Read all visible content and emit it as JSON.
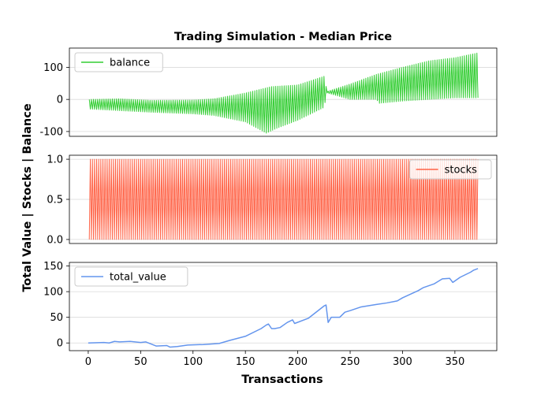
{
  "chart_data": {
    "type": "line",
    "title": "Trading Simulation - Median Price",
    "xlabel": "Transactions",
    "ylabel": "Total Value | Stocks | Balance",
    "xlim": [
      -18,
      390
    ],
    "xticks": [
      0,
      50,
      100,
      150,
      200,
      250,
      300,
      350
    ],
    "grid": "horizontal",
    "panels": [
      {
        "name": "balance",
        "legend": "balance",
        "legend_position": "upper-left",
        "color": "#32cd32",
        "style": "oscillating",
        "ylim": [
          -115,
          160
        ],
        "yticks": [
          -100,
          0,
          100
        ],
        "n": 372,
        "x_start": 1,
        "high_envelope": [
          [
            1,
            0
          ],
          [
            30,
            2
          ],
          [
            60,
            -3
          ],
          [
            100,
            -2
          ],
          [
            120,
            2
          ],
          [
            150,
            20
          ],
          [
            175,
            40
          ],
          [
            200,
            45
          ],
          [
            225,
            72
          ],
          [
            228,
            25
          ],
          [
            250,
            48
          ],
          [
            275,
            78
          ],
          [
            300,
            100
          ],
          [
            325,
            120
          ],
          [
            350,
            130
          ],
          [
            372,
            145
          ]
        ],
        "low_envelope": [
          [
            1,
            -30
          ],
          [
            30,
            -35
          ],
          [
            60,
            -40
          ],
          [
            100,
            -45
          ],
          [
            120,
            -50
          ],
          [
            150,
            -70
          ],
          [
            170,
            -105
          ],
          [
            180,
            -90
          ],
          [
            200,
            -65
          ],
          [
            225,
            -25
          ],
          [
            228,
            20
          ],
          [
            250,
            0
          ],
          [
            275,
            0
          ],
          [
            278,
            -12
          ],
          [
            300,
            -5
          ],
          [
            325,
            0
          ],
          [
            350,
            5
          ],
          [
            372,
            5
          ]
        ]
      },
      {
        "name": "stocks",
        "legend": "stocks",
        "legend_position": "upper-right",
        "color": "#ff6347",
        "style": "square",
        "ylim": [
          -0.05,
          1.05
        ],
        "yticks": [
          0.0,
          0.5,
          1.0
        ],
        "n": 372,
        "x_start": 1,
        "low": 0,
        "high": 1
      },
      {
        "name": "total_value",
        "legend": "total_value",
        "legend_position": "upper-left",
        "color": "#6495ed",
        "style": "line",
        "ylim": [
          -15,
          157
        ],
        "yticks": [
          0,
          50,
          100,
          150
        ],
        "points": [
          [
            0,
            0
          ],
          [
            15,
            1
          ],
          [
            20,
            0
          ],
          [
            25,
            3
          ],
          [
            30,
            2
          ],
          [
            40,
            3
          ],
          [
            50,
            1
          ],
          [
            55,
            2
          ],
          [
            60,
            -2
          ],
          [
            65,
            -6
          ],
          [
            75,
            -5
          ],
          [
            78,
            -8
          ],
          [
            85,
            -7
          ],
          [
            95,
            -4
          ],
          [
            110,
            -3
          ],
          [
            125,
            -1
          ],
          [
            135,
            5
          ],
          [
            150,
            13
          ],
          [
            165,
            28
          ],
          [
            170,
            35
          ],
          [
            172,
            37
          ],
          [
            175,
            28
          ],
          [
            178,
            28
          ],
          [
            183,
            30
          ],
          [
            190,
            40
          ],
          [
            195,
            45
          ],
          [
            197,
            38
          ],
          [
            210,
            48
          ],
          [
            225,
            72
          ],
          [
            227,
            74
          ],
          [
            229,
            40
          ],
          [
            232,
            50
          ],
          [
            240,
            50
          ],
          [
            245,
            60
          ],
          [
            250,
            63
          ],
          [
            260,
            70
          ],
          [
            275,
            75
          ],
          [
            285,
            78
          ],
          [
            295,
            82
          ],
          [
            300,
            88
          ],
          [
            315,
            102
          ],
          [
            320,
            108
          ],
          [
            330,
            115
          ],
          [
            338,
            125
          ],
          [
            345,
            126
          ],
          [
            348,
            118
          ],
          [
            355,
            128
          ],
          [
            365,
            138
          ],
          [
            368,
            142
          ],
          [
            372,
            145
          ]
        ]
      }
    ]
  }
}
